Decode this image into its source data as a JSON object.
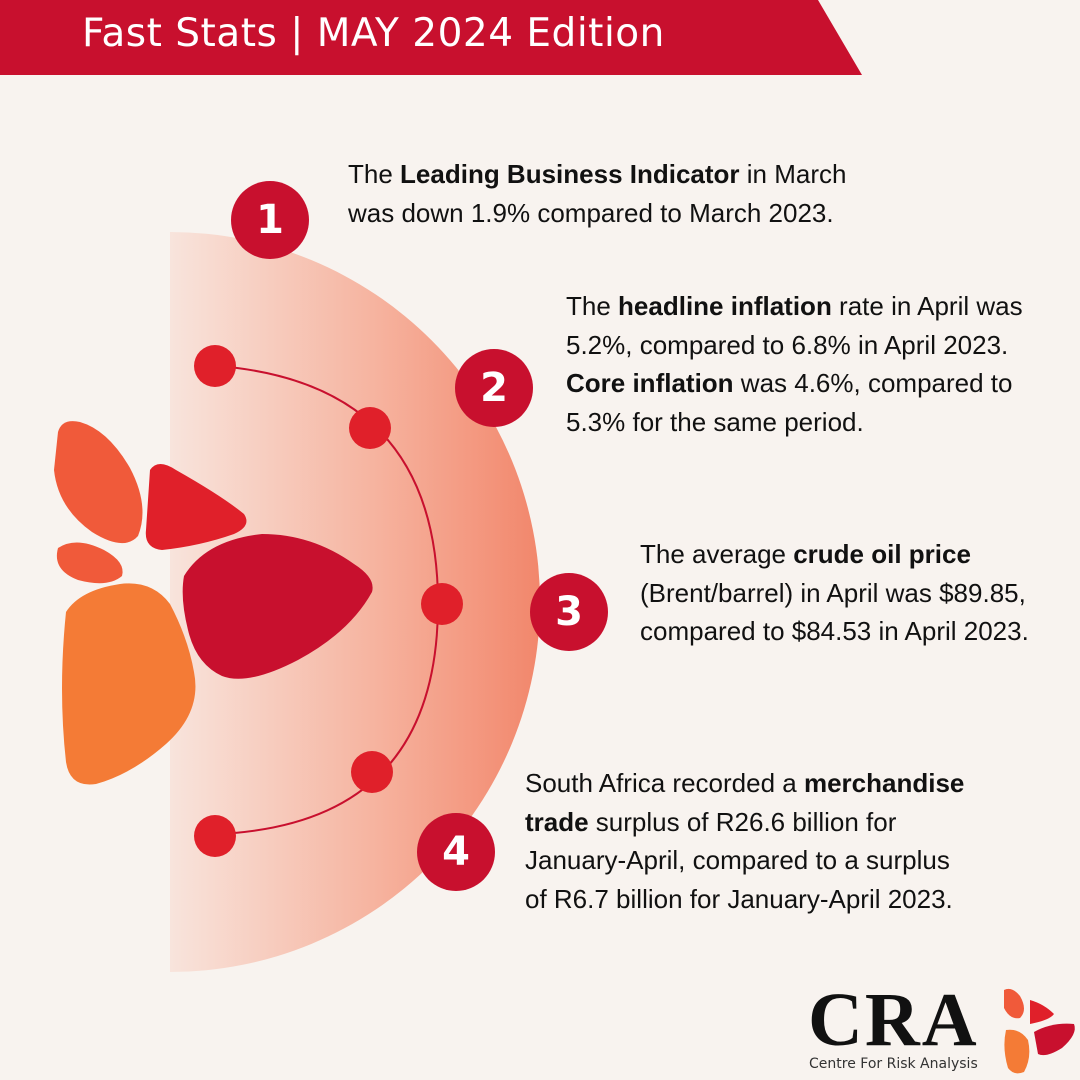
{
  "header": {
    "title": "Fast Stats | MAY 2024 Edition"
  },
  "stats": [
    {
      "number": "1",
      "parts": [
        "The ",
        "Leading Business Indicator",
        " in March was down 1.9% compared to March 2023."
      ]
    },
    {
      "number": "2",
      "parts": [
        "The ",
        "headline inflation",
        " rate in April was 5.2%, compared to 6.8% in April 2023. ",
        "Core inflation",
        " was 4.6%, compared to 5.3% for the same period."
      ]
    },
    {
      "number": "3",
      "parts": [
        "The average ",
        "crude oil price",
        " (Brent/barrel) in April was $89.85, compared to $84.53 in April 2023."
      ]
    },
    {
      "number": "4",
      "parts": [
        "South Africa recorded a ",
        "merchandise trade",
        " surplus of R26.6 billion for January-April, compared to a surplus of R6.7 billion for January-April 2023."
      ]
    }
  ],
  "logo": {
    "name": "CRA",
    "subtitle": "Centre For Risk Analysis"
  },
  "colors": {
    "accent_red": "#c8102e",
    "dot_red": "#e0202a",
    "orange": "#f47b36",
    "coral": "#f05a3a",
    "background": "#f8f3ef",
    "gradient_light": "#f8e4dc",
    "gradient_dark": "#f2876c"
  }
}
